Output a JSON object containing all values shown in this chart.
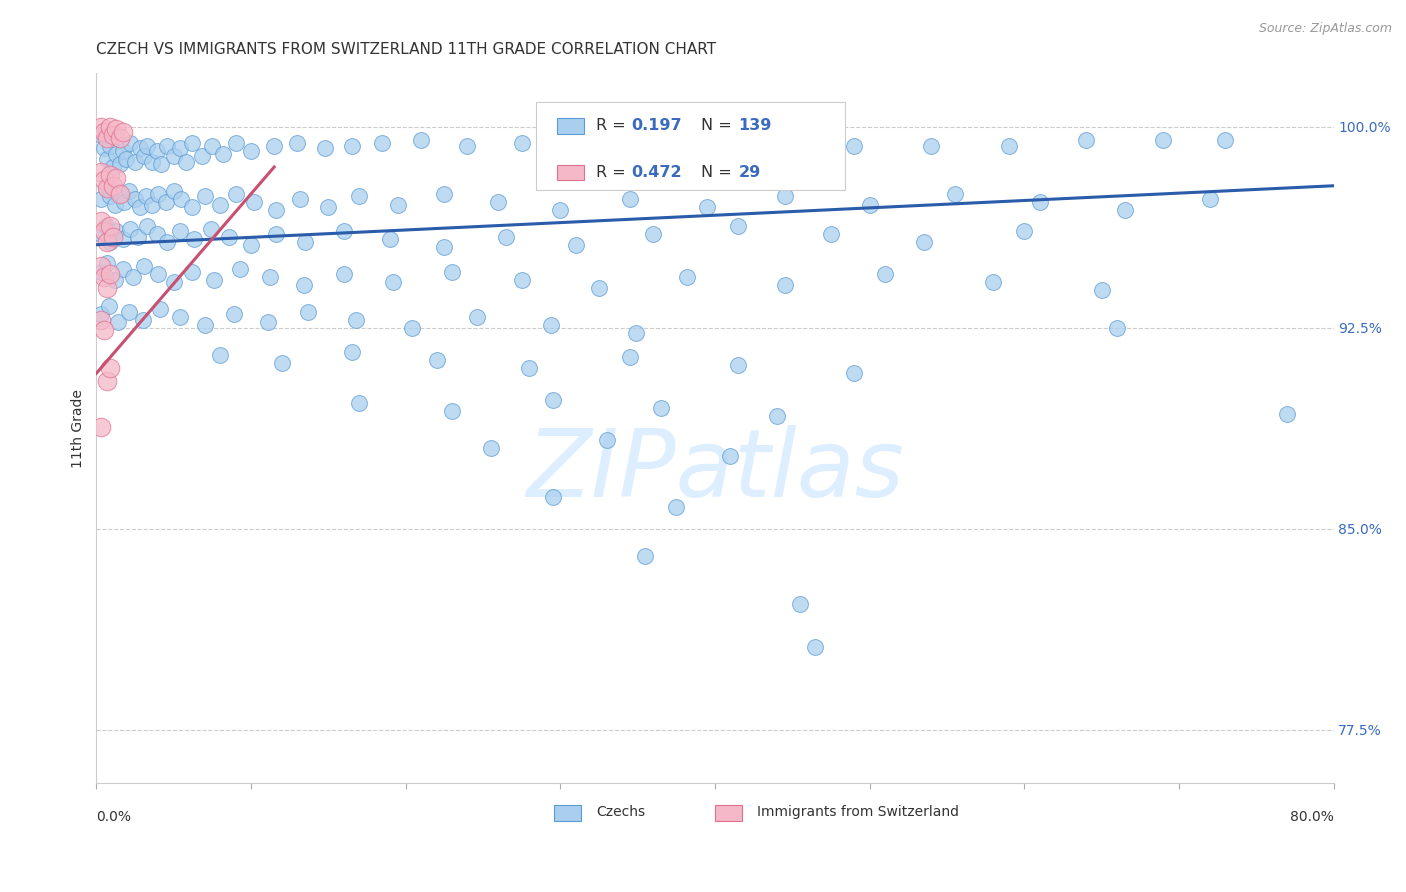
{
  "title": "CZECH VS IMMIGRANTS FROM SWITZERLAND 11TH GRADE CORRELATION CHART",
  "source": "Source: ZipAtlas.com",
  "ylabel": "11th Grade",
  "ytick_labels": [
    "100.0%",
    "92.5%",
    "85.0%",
    "77.5%"
  ],
  "ytick_values": [
    1.0,
    0.925,
    0.85,
    0.775
  ],
  "xmin": 0.0,
  "xmax": 0.8,
  "ymin": 0.755,
  "ymax": 1.02,
  "legend_blue_r": "0.197",
  "legend_blue_n": "139",
  "legend_pink_r": "0.472",
  "legend_pink_n": "29",
  "blue_color": "#aacfee",
  "blue_edge": "#5b9bd5",
  "pink_color": "#f5b8c8",
  "pink_edge": "#e07090",
  "trendline_blue": "#2a5caa",
  "trendline_pink": "#c85070",
  "watermark_color": "#dceeff",
  "blue_trend_x": [
    0.0,
    0.8
  ],
  "blue_trend_y": [
    0.956,
    0.978
  ],
  "pink_trend_x": [
    0.0,
    0.115
  ],
  "pink_trend_y": [
    0.908,
    0.985
  ],
  "blue_points": [
    [
      0.003,
      0.997,
      9
    ],
    [
      0.005,
      0.992,
      8
    ],
    [
      0.007,
      0.988,
      8
    ],
    [
      0.009,
      0.993,
      7
    ],
    [
      0.011,
      0.985,
      8
    ],
    [
      0.013,
      0.99,
      7
    ],
    [
      0.015,
      0.986,
      6
    ],
    [
      0.017,
      0.991,
      7
    ],
    [
      0.019,
      0.988,
      7
    ],
    [
      0.022,
      0.994,
      8
    ],
    [
      0.025,
      0.987,
      7
    ],
    [
      0.028,
      0.992,
      8
    ],
    [
      0.031,
      0.989,
      7
    ],
    [
      0.033,
      0.993,
      6
    ],
    [
      0.036,
      0.987,
      7
    ],
    [
      0.039,
      0.991,
      8
    ],
    [
      0.042,
      0.986,
      7
    ],
    [
      0.046,
      0.993,
      8
    ],
    [
      0.05,
      0.989,
      7
    ],
    [
      0.054,
      0.992,
      8
    ],
    [
      0.058,
      0.987,
      7
    ],
    [
      0.062,
      0.994,
      8
    ],
    [
      0.068,
      0.989,
      7
    ],
    [
      0.075,
      0.993,
      8
    ],
    [
      0.082,
      0.99,
      7
    ],
    [
      0.09,
      0.994,
      8
    ],
    [
      0.1,
      0.991,
      7
    ],
    [
      0.115,
      0.993,
      8
    ],
    [
      0.13,
      0.994,
      7
    ],
    [
      0.148,
      0.992,
      8
    ],
    [
      0.165,
      0.993,
      7
    ],
    [
      0.185,
      0.994,
      8
    ],
    [
      0.21,
      0.995,
      7
    ],
    [
      0.24,
      0.993,
      8
    ],
    [
      0.275,
      0.994,
      8
    ],
    [
      0.31,
      0.994,
      7
    ],
    [
      0.35,
      0.994,
      8
    ],
    [
      0.395,
      0.994,
      7
    ],
    [
      0.44,
      0.994,
      8
    ],
    [
      0.49,
      0.993,
      7
    ],
    [
      0.54,
      0.993,
      8
    ],
    [
      0.59,
      0.993,
      7
    ],
    [
      0.64,
      0.995,
      8
    ],
    [
      0.69,
      0.995,
      7
    ],
    [
      0.73,
      0.995,
      8
    ],
    [
      0.003,
      0.973,
      8
    ],
    [
      0.006,
      0.977,
      9
    ],
    [
      0.009,
      0.974,
      8
    ],
    [
      0.012,
      0.971,
      7
    ],
    [
      0.015,
      0.975,
      8
    ],
    [
      0.018,
      0.972,
      7
    ],
    [
      0.021,
      0.976,
      8
    ],
    [
      0.025,
      0.973,
      9
    ],
    [
      0.028,
      0.97,
      7
    ],
    [
      0.032,
      0.974,
      8
    ],
    [
      0.036,
      0.971,
      7
    ],
    [
      0.04,
      0.975,
      8
    ],
    [
      0.045,
      0.972,
      7
    ],
    [
      0.05,
      0.976,
      8
    ],
    [
      0.055,
      0.973,
      7
    ],
    [
      0.062,
      0.97,
      8
    ],
    [
      0.07,
      0.974,
      7
    ],
    [
      0.08,
      0.971,
      8
    ],
    [
      0.09,
      0.975,
      7
    ],
    [
      0.102,
      0.972,
      8
    ],
    [
      0.116,
      0.969,
      7
    ],
    [
      0.132,
      0.973,
      8
    ],
    [
      0.15,
      0.97,
      7
    ],
    [
      0.17,
      0.974,
      8
    ],
    [
      0.195,
      0.971,
      7
    ],
    [
      0.225,
      0.975,
      8
    ],
    [
      0.26,
      0.972,
      7
    ],
    [
      0.3,
      0.969,
      8
    ],
    [
      0.345,
      0.973,
      7
    ],
    [
      0.395,
      0.97,
      8
    ],
    [
      0.445,
      0.974,
      7
    ],
    [
      0.5,
      0.971,
      8
    ],
    [
      0.555,
      0.975,
      7
    ],
    [
      0.61,
      0.972,
      8
    ],
    [
      0.665,
      0.969,
      7
    ],
    [
      0.72,
      0.973,
      8
    ],
    [
      0.003,
      0.96,
      9
    ],
    [
      0.006,
      0.963,
      8
    ],
    [
      0.009,
      0.957,
      7
    ],
    [
      0.013,
      0.961,
      8
    ],
    [
      0.017,
      0.958,
      7
    ],
    [
      0.022,
      0.962,
      8
    ],
    [
      0.027,
      0.959,
      7
    ],
    [
      0.033,
      0.963,
      8
    ],
    [
      0.039,
      0.96,
      7
    ],
    [
      0.046,
      0.957,
      8
    ],
    [
      0.054,
      0.961,
      7
    ],
    [
      0.063,
      0.958,
      8
    ],
    [
      0.074,
      0.962,
      7
    ],
    [
      0.086,
      0.959,
      8
    ],
    [
      0.1,
      0.956,
      7
    ],
    [
      0.116,
      0.96,
      8
    ],
    [
      0.135,
      0.957,
      7
    ],
    [
      0.16,
      0.961,
      8
    ],
    [
      0.19,
      0.958,
      7
    ],
    [
      0.225,
      0.955,
      8
    ],
    [
      0.265,
      0.959,
      7
    ],
    [
      0.31,
      0.956,
      8
    ],
    [
      0.36,
      0.96,
      7
    ],
    [
      0.415,
      0.963,
      8
    ],
    [
      0.475,
      0.96,
      7
    ],
    [
      0.535,
      0.957,
      8
    ],
    [
      0.6,
      0.961,
      7
    ],
    [
      0.66,
      0.925,
      8
    ],
    [
      0.003,
      0.946,
      8
    ],
    [
      0.007,
      0.949,
      7
    ],
    [
      0.012,
      0.943,
      8
    ],
    [
      0.017,
      0.947,
      7
    ],
    [
      0.024,
      0.944,
      8
    ],
    [
      0.031,
      0.948,
      7
    ],
    [
      0.04,
      0.945,
      8
    ],
    [
      0.05,
      0.942,
      7
    ],
    [
      0.062,
      0.946,
      8
    ],
    [
      0.076,
      0.943,
      7
    ],
    [
      0.093,
      0.947,
      8
    ],
    [
      0.112,
      0.944,
      7
    ],
    [
      0.134,
      0.941,
      8
    ],
    [
      0.16,
      0.945,
      7
    ],
    [
      0.192,
      0.942,
      8
    ],
    [
      0.23,
      0.946,
      7
    ],
    [
      0.275,
      0.943,
      8
    ],
    [
      0.325,
      0.94,
      7
    ],
    [
      0.382,
      0.944,
      8
    ],
    [
      0.445,
      0.941,
      7
    ],
    [
      0.51,
      0.945,
      8
    ],
    [
      0.58,
      0.942,
      7
    ],
    [
      0.65,
      0.939,
      8
    ],
    [
      0.003,
      0.93,
      8
    ],
    [
      0.008,
      0.933,
      7
    ],
    [
      0.014,
      0.927,
      8
    ],
    [
      0.021,
      0.931,
      7
    ],
    [
      0.03,
      0.928,
      8
    ],
    [
      0.041,
      0.932,
      7
    ],
    [
      0.054,
      0.929,
      8
    ],
    [
      0.07,
      0.926,
      7
    ],
    [
      0.089,
      0.93,
      8
    ],
    [
      0.111,
      0.927,
      7
    ],
    [
      0.137,
      0.931,
      8
    ],
    [
      0.168,
      0.928,
      7
    ],
    [
      0.204,
      0.925,
      8
    ],
    [
      0.246,
      0.929,
      7
    ],
    [
      0.294,
      0.926,
      8
    ],
    [
      0.349,
      0.923,
      7
    ],
    [
      0.08,
      0.915,
      7
    ],
    [
      0.12,
      0.912,
      8
    ],
    [
      0.165,
      0.916,
      7
    ],
    [
      0.22,
      0.913,
      8
    ],
    [
      0.28,
      0.91,
      7
    ],
    [
      0.345,
      0.914,
      8
    ],
    [
      0.415,
      0.911,
      7
    ],
    [
      0.49,
      0.908,
      8
    ],
    [
      0.17,
      0.897,
      8
    ],
    [
      0.23,
      0.894,
      7
    ],
    [
      0.295,
      0.898,
      8
    ],
    [
      0.365,
      0.895,
      7
    ],
    [
      0.44,
      0.892,
      8
    ],
    [
      0.255,
      0.88,
      7
    ],
    [
      0.33,
      0.883,
      8
    ],
    [
      0.41,
      0.877,
      7
    ],
    [
      0.295,
      0.862,
      8
    ],
    [
      0.375,
      0.858,
      7
    ],
    [
      0.355,
      0.84,
      7
    ],
    [
      0.455,
      0.822,
      7
    ],
    [
      0.465,
      0.806,
      6
    ],
    [
      0.77,
      0.893,
      8
    ]
  ],
  "pink_points": [
    [
      0.003,
      1.0,
      9
    ],
    [
      0.005,
      0.998,
      11
    ],
    [
      0.007,
      0.996,
      10
    ],
    [
      0.009,
      1.0,
      8
    ],
    [
      0.011,
      0.997,
      9
    ],
    [
      0.013,
      0.999,
      10
    ],
    [
      0.015,
      0.996,
      8
    ],
    [
      0.017,
      0.998,
      9
    ],
    [
      0.003,
      0.983,
      11
    ],
    [
      0.005,
      0.98,
      13
    ],
    [
      0.007,
      0.977,
      12
    ],
    [
      0.009,
      0.982,
      10
    ],
    [
      0.011,
      0.978,
      11
    ],
    [
      0.013,
      0.981,
      12
    ],
    [
      0.015,
      0.975,
      10
    ],
    [
      0.003,
      0.965,
      14
    ],
    [
      0.005,
      0.961,
      16
    ],
    [
      0.007,
      0.957,
      15
    ],
    [
      0.009,
      0.963,
      13
    ],
    [
      0.011,
      0.959,
      14
    ],
    [
      0.003,
      0.948,
      17
    ],
    [
      0.005,
      0.944,
      19
    ],
    [
      0.007,
      0.94,
      18
    ],
    [
      0.009,
      0.945,
      16
    ],
    [
      0.003,
      0.928,
      22
    ],
    [
      0.005,
      0.924,
      20
    ],
    [
      0.007,
      0.905,
      18
    ],
    [
      0.009,
      0.91,
      16
    ],
    [
      0.003,
      0.888,
      15
    ]
  ]
}
